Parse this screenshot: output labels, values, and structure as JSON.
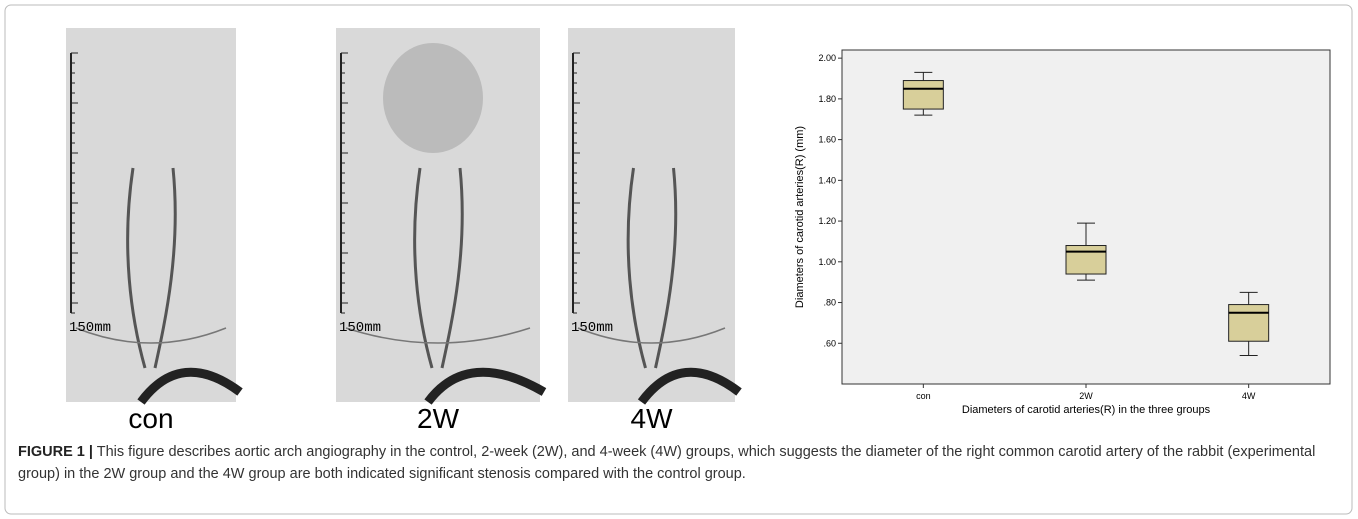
{
  "panels": [
    {
      "label": "con",
      "scale": "150mm"
    },
    {
      "label": "2W",
      "scale": "150mm"
    },
    {
      "label": "4W",
      "scale": "150mm"
    }
  ],
  "chart_data": {
    "type": "box",
    "y_label": "Diameters of carotid arteries(R) (mm)",
    "x_label": "Diameters of carotid arteries(R) in the three groups",
    "categories": [
      "con",
      "2W",
      "4W"
    ],
    "boxes": [
      {
        "low": 1.72,
        "q1": 1.75,
        "median": 1.85,
        "q3": 1.89,
        "high": 1.93
      },
      {
        "low": 0.91,
        "q1": 0.94,
        "median": 1.05,
        "q3": 1.08,
        "high": 1.19
      },
      {
        "low": 0.54,
        "q1": 0.61,
        "median": 0.75,
        "q3": 0.79,
        "high": 0.85
      }
    ],
    "color": "#d8cf9a",
    "ylim": [
      0.4,
      2.04
    ],
    "yticks": [
      {
        "value": 0.6,
        "label": ".60"
      },
      {
        "value": 0.8,
        "label": ".80"
      },
      {
        "value": 1.0,
        "label": "1.00"
      },
      {
        "value": 1.2,
        "label": "1.20"
      },
      {
        "value": 1.4,
        "label": "1.40"
      },
      {
        "value": 1.6,
        "label": "1.60"
      },
      {
        "value": 1.8,
        "label": "1.80"
      },
      {
        "value": 2.0,
        "label": "2.00"
      }
    ]
  },
  "caption": {
    "label": "FIGURE 1 |",
    "text": "This figure describes aortic arch angiography in the control, 2-week (2W), and 4-week (4W) groups, which suggests the diameter of the right common carotid artery of the rabbit (experimental group) in the 2W group and the 4W group are both indicated significant stenosis compared with the control group."
  }
}
